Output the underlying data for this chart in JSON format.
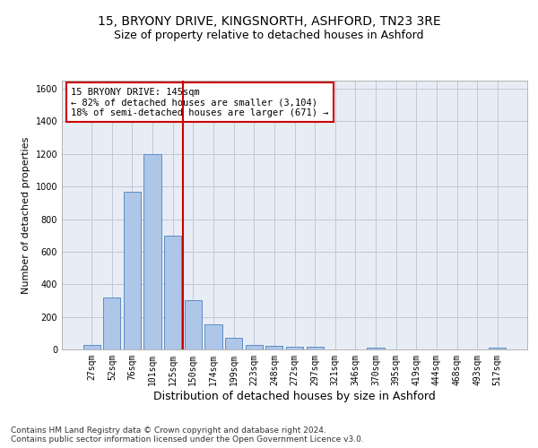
{
  "title_line1": "15, BRYONY DRIVE, KINGSNORTH, ASHFORD, TN23 3RE",
  "title_line2": "Size of property relative to detached houses in Ashford",
  "xlabel": "Distribution of detached houses by size in Ashford",
  "ylabel": "Number of detached properties",
  "categories": [
    "27sqm",
    "52sqm",
    "76sqm",
    "101sqm",
    "125sqm",
    "150sqm",
    "174sqm",
    "199sqm",
    "223sqm",
    "248sqm",
    "272sqm",
    "297sqm",
    "321sqm",
    "346sqm",
    "370sqm",
    "395sqm",
    "419sqm",
    "444sqm",
    "468sqm",
    "493sqm",
    "517sqm"
  ],
  "values": [
    30,
    320,
    970,
    1200,
    700,
    305,
    155,
    70,
    25,
    20,
    15,
    15,
    0,
    0,
    12,
    0,
    0,
    0,
    0,
    0,
    12
  ],
  "bar_color": "#aec6e8",
  "bar_edge_color": "#5b8ec4",
  "vline_x_index": 4.5,
  "vline_color": "#cc0000",
  "annotation_line1": "15 BRYONY DRIVE: 145sqm",
  "annotation_line2": "← 82% of detached houses are smaller (3,104)",
  "annotation_line3": "18% of semi-detached houses are larger (671) →",
  "annotation_box_color": "#cc0000",
  "ylim": [
    0,
    1650
  ],
  "yticks": [
    0,
    200,
    400,
    600,
    800,
    1000,
    1200,
    1400,
    1600
  ],
  "grid_color": "#c0c8d8",
  "bg_color": "#e8edf5",
  "footnote": "Contains HM Land Registry data © Crown copyright and database right 2024.\nContains public sector information licensed under the Open Government Licence v3.0.",
  "title_fontsize": 10,
  "subtitle_fontsize": 9,
  "xlabel_fontsize": 9,
  "ylabel_fontsize": 8,
  "tick_fontsize": 7,
  "annotation_fontsize": 7.5,
  "footnote_fontsize": 6.5
}
